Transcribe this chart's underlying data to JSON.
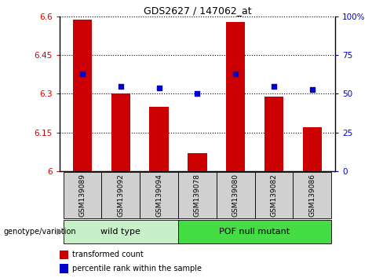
{
  "title": "GDS2627 / 147062_at",
  "samples": [
    "GSM139089",
    "GSM139092",
    "GSM139094",
    "GSM139078",
    "GSM139080",
    "GSM139082",
    "GSM139086"
  ],
  "red_values": [
    6.59,
    6.3,
    6.25,
    6.07,
    6.58,
    6.29,
    6.17
  ],
  "blue_values": [
    63,
    55,
    54,
    50,
    63,
    55,
    53
  ],
  "ylim_left": [
    6.0,
    6.6
  ],
  "ylim_right": [
    0,
    100
  ],
  "yticks_left": [
    6.0,
    6.15,
    6.3,
    6.45,
    6.6
  ],
  "yticks_right": [
    0,
    25,
    50,
    75,
    100
  ],
  "ytick_labels_left": [
    "6",
    "6.15",
    "6.3",
    "6.45",
    "6.6"
  ],
  "ytick_labels_right": [
    "0",
    "25",
    "50",
    "75",
    "100%"
  ],
  "groups": [
    {
      "label": "wild type",
      "indices": [
        0,
        1,
        2
      ],
      "color": "#c8f0c8"
    },
    {
      "label": "POF null mutant",
      "indices": [
        3,
        4,
        5,
        6
      ],
      "color": "#44dd44"
    }
  ],
  "group_label": "genotype/variation",
  "legend_red": "transformed count",
  "legend_blue": "percentile rank within the sample",
  "bar_color": "#cc0000",
  "dot_color": "#0000cc",
  "bar_width": 0.5,
  "tick_label_color_left": "#cc0000",
  "tick_label_color_right": "#0000cc",
  "sample_bg": "#d0d0d0"
}
